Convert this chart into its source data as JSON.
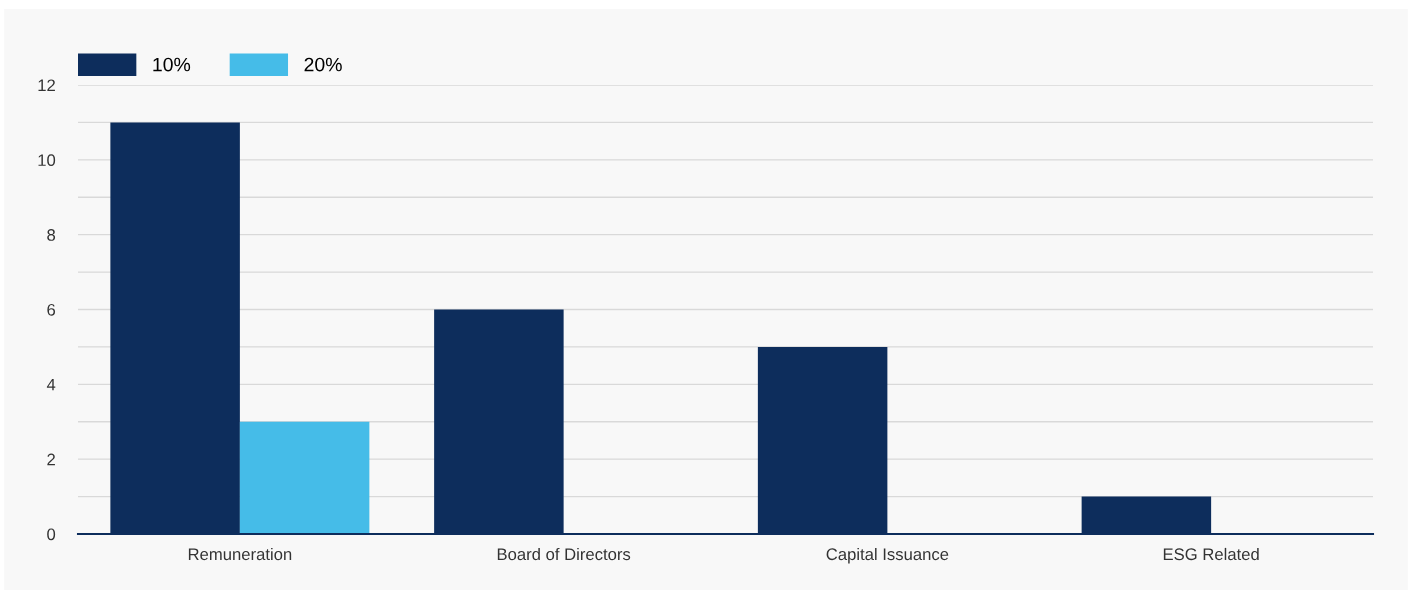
{
  "chart_data": {
    "type": "bar",
    "categories": [
      "Remuneration",
      "Board of Directors",
      "Capital Issuance",
      "ESG Related"
    ],
    "series": [
      {
        "name": "10%",
        "color": "#0d2d5c",
        "values": [
          11,
          6,
          5,
          1
        ]
      },
      {
        "name": "20%",
        "color": "#45bce8",
        "values": [
          3,
          0,
          0,
          0
        ]
      }
    ],
    "ylim": [
      0,
      12
    ],
    "yticks": [
      0,
      {
        "value": 1,
        "label": null
      },
      2,
      {
        "value": 3,
        "label": null
      },
      4,
      {
        "value": 5,
        "label": null
      },
      6,
      {
        "value": 7,
        "label": null
      },
      8,
      {
        "value": 9,
        "label": null
      },
      10,
      {
        "value": 11,
        "label": null
      },
      12
    ],
    "grid": "y",
    "legend": "top left"
  }
}
